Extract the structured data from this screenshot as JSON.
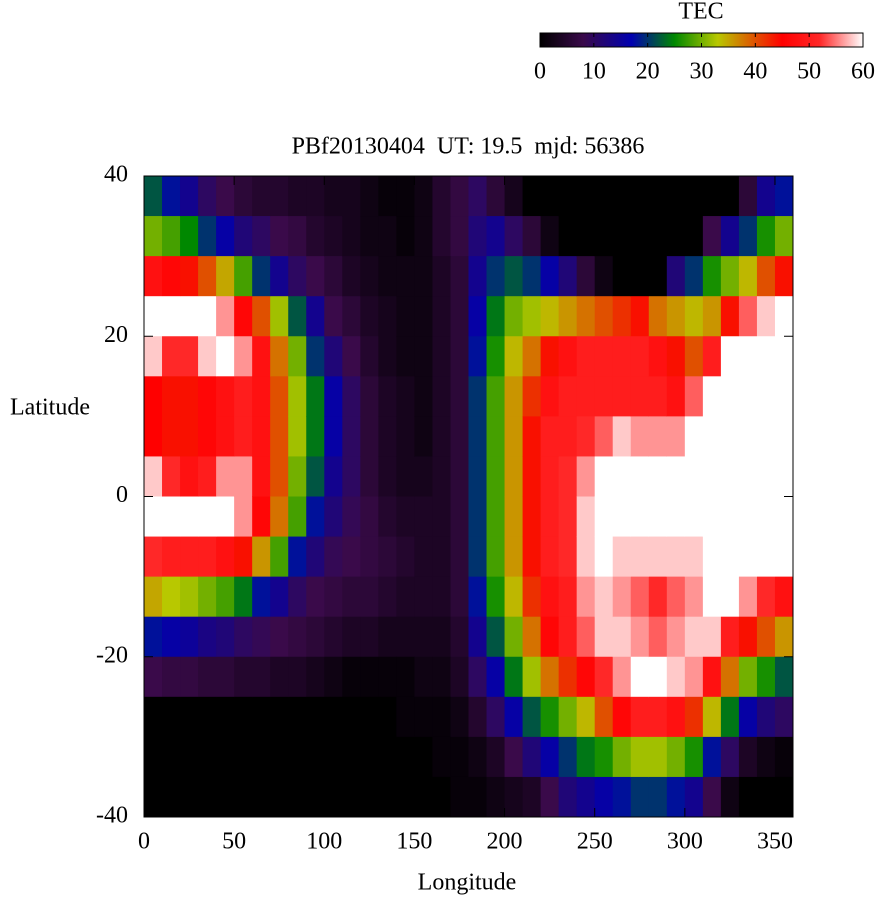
{
  "chart_data": {
    "type": "heatmap",
    "title": "PBf20130404  UT: 19.5  mjd: 56386",
    "xlabel": "Longitude",
    "ylabel": "Latitude",
    "colorbar_title": "TEC",
    "xlim": [
      0,
      360
    ],
    "ylim": [
      -40,
      40
    ],
    "clim": [
      0,
      60
    ],
    "xticks": [
      0,
      50,
      100,
      150,
      200,
      250,
      300,
      350
    ],
    "yticks": [
      -40,
      -20,
      0,
      20,
      40
    ],
    "cticks": [
      0,
      10,
      20,
      30,
      40,
      50,
      60
    ],
    "colorscale": [
      [
        0,
        "#000000"
      ],
      [
        8,
        "#3a0a4a"
      ],
      [
        17,
        "#0000b0"
      ],
      [
        25,
        "#008800"
      ],
      [
        33,
        "#b8c800"
      ],
      [
        40,
        "#e05000"
      ],
      [
        45,
        "#ff0000"
      ],
      [
        52,
        "#ff2828"
      ],
      [
        60,
        "#ffffff"
      ]
    ],
    "x": [
      5,
      15,
      25,
      35,
      45,
      55,
      65,
      75,
      85,
      95,
      105,
      115,
      125,
      135,
      145,
      155,
      165,
      175,
      185,
      195,
      205,
      215,
      225,
      235,
      245,
      255,
      265,
      275,
      285,
      295,
      305,
      315,
      325,
      335,
      345,
      355
    ],
    "y": [
      37.5,
      32.5,
      27.5,
      22.5,
      17.5,
      12.5,
      7.5,
      2.5,
      -2.5,
      -7.5,
      -12.5,
      -17.5,
      -22.5,
      -27.5,
      -32.5,
      -37.5
    ],
    "values": [
      [
        22,
        30,
        48,
        60,
        58,
        45,
        45,
        58,
        60,
        52,
        35,
        18,
        8,
        0,
        0,
        0
      ],
      [
        18,
        28,
        46,
        60,
        52,
        44,
        44,
        52,
        60,
        50,
        33,
        16,
        7,
        0,
        0,
        0
      ],
      [
        14,
        25,
        44,
        60,
        52,
        44,
        44,
        48,
        60,
        50,
        32,
        15,
        7,
        0,
        0,
        0
      ],
      [
        10,
        20,
        40,
        60,
        58,
        46,
        46,
        50,
        60,
        50,
        30,
        13,
        6,
        0,
        0,
        0
      ],
      [
        8,
        16,
        35,
        56,
        60,
        48,
        48,
        56,
        60,
        48,
        28,
        12,
        6,
        0,
        0,
        0
      ],
      [
        6,
        12,
        28,
        46,
        56,
        50,
        50,
        56,
        56,
        44,
        24,
        10,
        5,
        0,
        0,
        0
      ],
      [
        5,
        10,
        20,
        40,
        48,
        48,
        48,
        48,
        46,
        36,
        18,
        9,
        5,
        0,
        0,
        0
      ],
      [
        5,
        8,
        14,
        32,
        38,
        40,
        40,
        40,
        38,
        28,
        14,
        8,
        4,
        0,
        0,
        0
      ],
      [
        4,
        7,
        10,
        22,
        30,
        32,
        32,
        30,
        28,
        18,
        10,
        7,
        4,
        0,
        0,
        0
      ],
      [
        4,
        5,
        8,
        14,
        20,
        24,
        24,
        22,
        18,
        12,
        8,
        6,
        3,
        0,
        0,
        0
      ],
      [
        3,
        4,
        6,
        8,
        12,
        16,
        16,
        14,
        12,
        9,
        7,
        5,
        2,
        0,
        0,
        0
      ],
      [
        3,
        3,
        4,
        6,
        8,
        10,
        10,
        10,
        9,
        8,
        6,
        4,
        1,
        0,
        0,
        0
      ],
      [
        2,
        2,
        3,
        4,
        5,
        6,
        6,
        6,
        7,
        7,
        6,
        4,
        1,
        0,
        0,
        0
      ],
      [
        1,
        2,
        2,
        3,
        3,
        4,
        4,
        4,
        5,
        6,
        5,
        3,
        1,
        0,
        0,
        0
      ],
      [
        1,
        1,
        2,
        2,
        2,
        3,
        3,
        3,
        4,
        5,
        4,
        3,
        1,
        1,
        0,
        0
      ],
      [
        2,
        2,
        2,
        2,
        2,
        2,
        2,
        3,
        4,
        4,
        4,
        3,
        2,
        1,
        0,
        0
      ],
      [
        5,
        5,
        4,
        4,
        4,
        4,
        4,
        4,
        4,
        4,
        4,
        3,
        2,
        1,
        1,
        0
      ],
      [
        7,
        7,
        6,
        6,
        6,
        6,
        6,
        6,
        6,
        6,
        6,
        5,
        4,
        2,
        1,
        1
      ],
      [
        10,
        12,
        14,
        16,
        18,
        20,
        20,
        20,
        20,
        20,
        18,
        14,
        10,
        5,
        2,
        1
      ],
      [
        6,
        14,
        20,
        24,
        26,
        28,
        28,
        28,
        28,
        28,
        26,
        22,
        16,
        10,
        4,
        2
      ],
      [
        3,
        10,
        22,
        30,
        34,
        36,
        36,
        36,
        36,
        36,
        34,
        30,
        24,
        16,
        8,
        3
      ],
      [
        0,
        6,
        20,
        32,
        38,
        42,
        44,
        44,
        44,
        44,
        42,
        38,
        32,
        22,
        12,
        4
      ],
      [
        0,
        2,
        16,
        34,
        44,
        48,
        50,
        50,
        50,
        50,
        48,
        46,
        38,
        26,
        16,
        8
      ],
      [
        0,
        0,
        12,
        36,
        48,
        50,
        50,
        52,
        52,
        52,
        50,
        50,
        42,
        30,
        20,
        12
      ],
      [
        0,
        0,
        6,
        38,
        50,
        50,
        52,
        56,
        58,
        58,
        56,
        54,
        46,
        34,
        24,
        14
      ],
      [
        0,
        0,
        2,
        40,
        50,
        50,
        54,
        60,
        60,
        60,
        58,
        58,
        52,
        40,
        26,
        16
      ],
      [
        0,
        0,
        0,
        42,
        50,
        50,
        58,
        60,
        60,
        58,
        56,
        58,
        56,
        46,
        30,
        18
      ],
      [
        0,
        0,
        0,
        44,
        50,
        50,
        56,
        60,
        60,
        58,
        54,
        56,
        60,
        50,
        32,
        20
      ],
      [
        0,
        0,
        0,
        38,
        48,
        50,
        56,
        60,
        60,
        58,
        52,
        54,
        60,
        50,
        32,
        20
      ],
      [
        0,
        0,
        12,
        36,
        44,
        48,
        56,
        60,
        60,
        58,
        54,
        56,
        58,
        48,
        30,
        18
      ],
      [
        0,
        0,
        20,
        34,
        40,
        54,
        60,
        60,
        60,
        58,
        56,
        58,
        56,
        42,
        26,
        14
      ],
      [
        0,
        8,
        26,
        36,
        50,
        60,
        60,
        60,
        60,
        60,
        60,
        58,
        48,
        34,
        18,
        8
      ],
      [
        0,
        14,
        30,
        44,
        60,
        60,
        60,
        60,
        60,
        60,
        60,
        50,
        38,
        24,
        10,
        2
      ],
      [
        6,
        20,
        34,
        54,
        60,
        60,
        60,
        60,
        60,
        60,
        56,
        44,
        30,
        16,
        4,
        0
      ],
      [
        14,
        26,
        40,
        58,
        60,
        60,
        60,
        60,
        60,
        60,
        52,
        40,
        26,
        12,
        2,
        0
      ],
      [
        18,
        30,
        44,
        60,
        60,
        60,
        60,
        60,
        60,
        60,
        48,
        36,
        22,
        10,
        1,
        0
      ]
    ]
  }
}
